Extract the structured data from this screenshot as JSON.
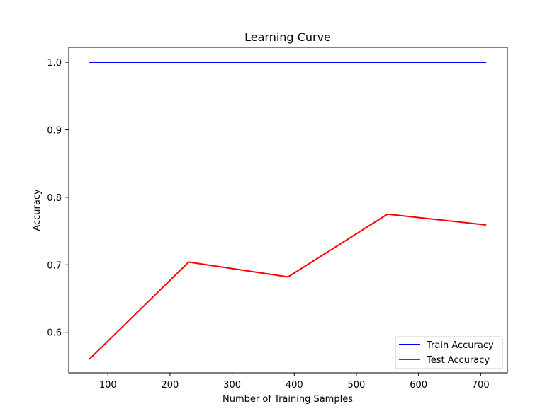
{
  "chart_data": {
    "type": "line",
    "title": "Learning Curve",
    "xlabel": "Number of Training Samples",
    "ylabel": "Accuracy",
    "xlim": [
      37,
      743
    ],
    "ylim": [
      0.54,
      1.022
    ],
    "xticks": [
      100,
      200,
      300,
      400,
      500,
      600,
      700
    ],
    "yticks": [
      0.6,
      0.7,
      0.8,
      0.9,
      1.0
    ],
    "xtick_labels": [
      "100",
      "200",
      "300",
      "400",
      "500",
      "600",
      "700"
    ],
    "ytick_labels": [
      "0.6",
      "0.7",
      "0.8",
      "0.9",
      "1.0"
    ],
    "x": [
      70,
      230,
      390,
      550,
      709
    ],
    "grid": false,
    "legend_position": "lower right",
    "series": [
      {
        "name": "Train Accuracy",
        "color": "#0000ff",
        "values": [
          1.0,
          1.0,
          1.0,
          1.0,
          1.0
        ]
      },
      {
        "name": "Test Accuracy",
        "color": "#ff0000",
        "values": [
          0.56,
          0.704,
          0.682,
          0.775,
          0.759
        ]
      }
    ]
  }
}
